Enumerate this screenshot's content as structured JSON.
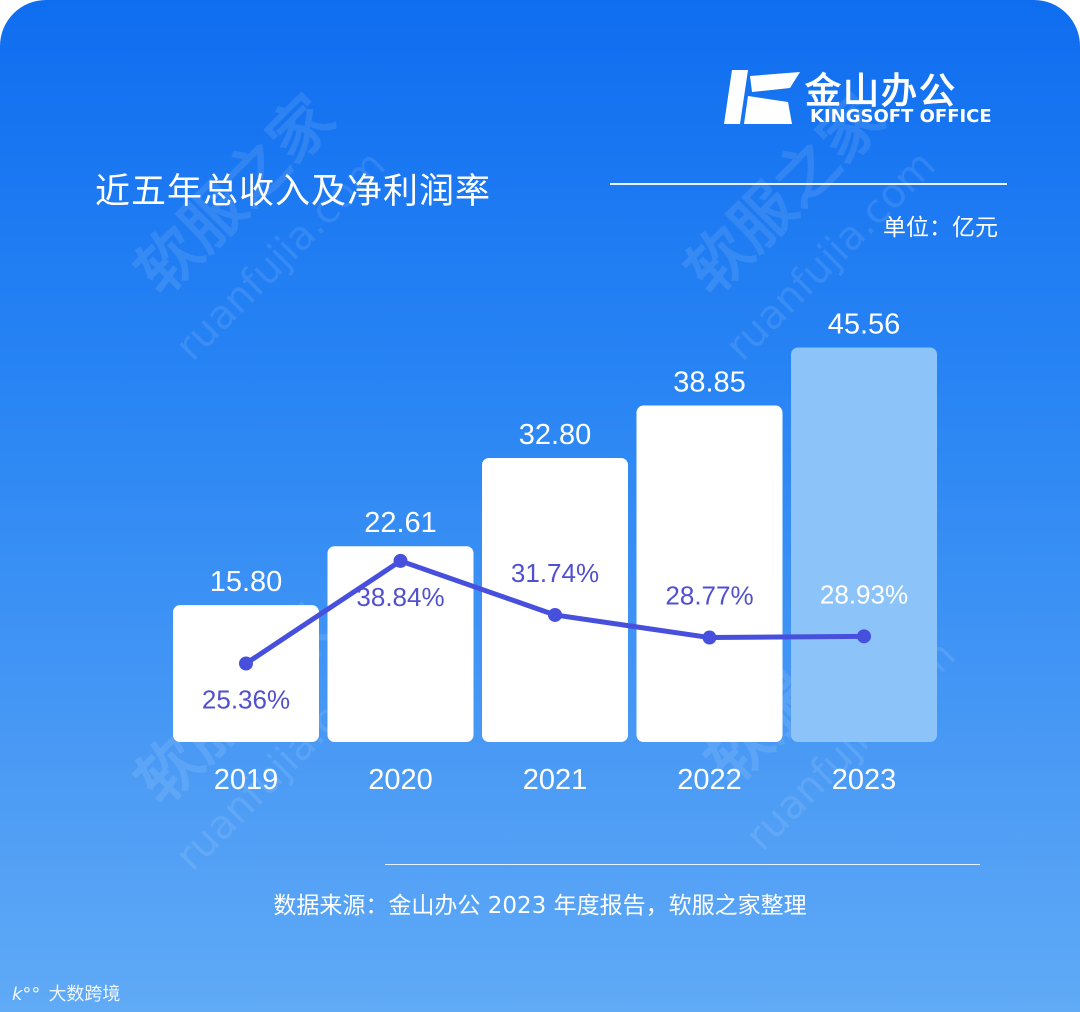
{
  "brand": {
    "logo_text_cn": "金山办公",
    "logo_text_en": "KINGSOFT OFFICE"
  },
  "watermark": {
    "text_cn": "软服之家",
    "text_en": "ruanfujia.com"
  },
  "footer": {
    "source_note": "数据来源：金山办公 2023 年度报告，软服之家整理",
    "corner_mark": "大数跨境"
  },
  "colors": {
    "background_top": "#0f6df0",
    "background_bottom": "#60aaf6",
    "bar": "#ffffff",
    "bar_highlight": "#8cc4fa",
    "line": "#4750dc",
    "line_label": "#5050d0",
    "text": "#ffffff"
  },
  "chart_data": {
    "type": "bar",
    "title": "近五年总收入及净利润率",
    "unit_label": "单位：亿元",
    "categories": [
      "2019",
      "2020",
      "2021",
      "2022",
      "2023"
    ],
    "series": [
      {
        "type": "bar",
        "values": [
          15.8,
          22.61,
          32.8,
          38.85,
          45.56
        ],
        "labels": [
          "15.80",
          "22.61",
          "32.80",
          "38.85",
          "45.56"
        ]
      },
      {
        "type": "line",
        "values": [
          25.36,
          38.84,
          31.74,
          28.77,
          28.93
        ],
        "labels": [
          "25.36%",
          "38.84%",
          "31.74%",
          "28.77%",
          "28.93%"
        ]
      }
    ],
    "highlight_category": "2023",
    "grid": false,
    "legend": "none"
  }
}
